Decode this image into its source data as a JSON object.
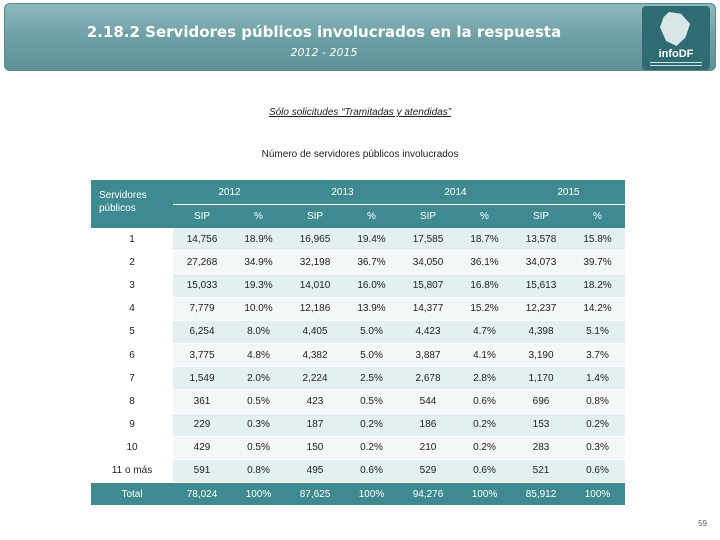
{
  "header": {
    "title": "2.18.2 Servidores públicos involucrados en la respuesta",
    "subtitle": "2012 - 2015",
    "logo_text": "infoDF"
  },
  "note": "Sólo solicitudes “Tramitadas y atendidas”",
  "table": {
    "caption": "Número de servidores públicos involucrados",
    "corner_label": "Servidores públicos",
    "years": [
      "2012",
      "2013",
      "2014",
      "2015"
    ],
    "sub_headers": [
      "SIP",
      "%"
    ],
    "rows": [
      {
        "label": "1",
        "cells": [
          "14,756",
          "18.9%",
          "16,965",
          "19.4%",
          "17,585",
          "18.7%",
          "13,578",
          "15.8%"
        ]
      },
      {
        "label": "2",
        "cells": [
          "27,268",
          "34.9%",
          "32,198",
          "36.7%",
          "34,050",
          "36.1%",
          "34,073",
          "39.7%"
        ]
      },
      {
        "label": "3",
        "cells": [
          "15,033",
          "19.3%",
          "14,010",
          "16.0%",
          "15,807",
          "16.8%",
          "15,613",
          "18.2%"
        ]
      },
      {
        "label": "4",
        "cells": [
          "7,779",
          "10.0%",
          "12,186",
          "13.9%",
          "14,377",
          "15.2%",
          "12,237",
          "14.2%"
        ]
      },
      {
        "label": "5",
        "cells": [
          "6,254",
          "8.0%",
          "4,405",
          "5.0%",
          "4,423",
          "4.7%",
          "4,398",
          "5.1%"
        ]
      },
      {
        "label": "6",
        "cells": [
          "3,775",
          "4.8%",
          "4,382",
          "5.0%",
          "3,887",
          "4.1%",
          "3,190",
          "3.7%"
        ]
      },
      {
        "label": "7",
        "cells": [
          "1,549",
          "2.0%",
          "2,224",
          "2.5%",
          "2,678",
          "2.8%",
          "1,170",
          "1.4%"
        ]
      },
      {
        "label": "8",
        "cells": [
          "361",
          "0.5%",
          "423",
          "0.5%",
          "544",
          "0.6%",
          "696",
          "0.8%"
        ]
      },
      {
        "label": "9",
        "cells": [
          "229",
          "0.3%",
          "187",
          "0.2%",
          "186",
          "0.2%",
          "153",
          "0.2%"
        ]
      },
      {
        "label": "10",
        "cells": [
          "429",
          "0.5%",
          "150",
          "0.2%",
          "210",
          "0.2%",
          "283",
          "0.3%"
        ]
      },
      {
        "label": "11 o más",
        "cells": [
          "591",
          "0.8%",
          "495",
          "0.6%",
          "529",
          "0.6%",
          "521",
          "0.6%"
        ]
      }
    ],
    "total": {
      "label": "Total",
      "cells": [
        "78,024",
        "100%",
        "87,625",
        "100%",
        "94,276",
        "100%",
        "85,912",
        "100%"
      ]
    }
  },
  "page_number": "59",
  "colors": {
    "banner": "#6c9ea4",
    "table_header": "#3e8a90",
    "row_tint": "#e4eff1"
  }
}
